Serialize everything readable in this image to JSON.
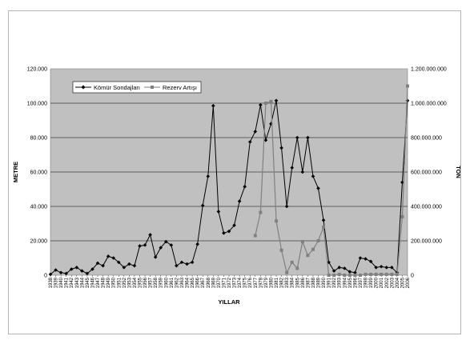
{
  "chart_data": {
    "type": "line",
    "xlabel": "YILLAR",
    "ylabel": "METRE",
    "y2label": "TON",
    "ylim": [
      0,
      120000
    ],
    "y2lim": [
      0,
      1200000000
    ],
    "yticks": [
      "0",
      "20.000",
      "40.000",
      "60.000",
      "80.000",
      "100.000",
      "120.000"
    ],
    "y2ticks": [
      "0",
      "200.000.000",
      "400.000.000",
      "600.000.000",
      "800.000.000",
      "1.000.000.000",
      "1.200.000.000"
    ],
    "grid": true,
    "legend_position": "top-left",
    "plot_background": "#c0c0c0",
    "categories": [
      "1938",
      "1939",
      "1940",
      "1941",
      "1942",
      "1943",
      "1944",
      "1945",
      "1946",
      "1947",
      "1948",
      "1949",
      "1950",
      "1951",
      "1952",
      "1953",
      "1954",
      "1955",
      "1956",
      "1957",
      "1958",
      "1959",
      "1960",
      "1961",
      "1962",
      "1963",
      "1964",
      "1965",
      "1966",
      "1967",
      "1968",
      "1969",
      "1970",
      "1971",
      "1972",
      "1973",
      "1974",
      "1975",
      "1976",
      "1977",
      "1978",
      "1979",
      "1980",
      "1981",
      "1982",
      "1983",
      "1984",
      "1985",
      "1986",
      "1987",
      "1988",
      "1989",
      "1990",
      "1991",
      "1992",
      "1993",
      "1994",
      "1995",
      "1996",
      "1997",
      "1998",
      "1999",
      "2000",
      "2001",
      "2002",
      "2003",
      "2004",
      "2005",
      "2006"
    ],
    "series": [
      {
        "name": "Kömür Sondajları",
        "axis": "left",
        "color": "#000000",
        "marker": "diamond",
        "values": [
          500,
          3000,
          1500,
          1000,
          3500,
          4500,
          2500,
          1000,
          3500,
          7000,
          5500,
          11000,
          10000,
          7500,
          4500,
          6500,
          5500,
          17000,
          17500,
          23500,
          10500,
          16000,
          19500,
          17500,
          5500,
          7500,
          6500,
          7500,
          18000,
          40500,
          57500,
          98500,
          37000,
          24500,
          25500,
          29000,
          43000,
          51500,
          77500,
          83500,
          99000,
          78500,
          88000,
          101500,
          74000,
          40000,
          62500,
          80000,
          60000,
          80000,
          57500,
          50500,
          32000,
          7500,
          2500,
          4500,
          4000,
          2000,
          1500,
          10000,
          9500,
          8000,
          4500,
          5000,
          4500,
          4500,
          1500,
          54000,
          101500
        ]
      },
      {
        "name": "Rezerv Artışı",
        "axis": "right",
        "color": "#808080",
        "marker": "square",
        "x": [
          "1977",
          "1978",
          "1979",
          "1980",
          "1981",
          "1982",
          "1983",
          "1984",
          "1985",
          "1986",
          "1987",
          "1988",
          "1989",
          "1990",
          "1991",
          "1992",
          "1993",
          "1994",
          "1995",
          "1996",
          "1997",
          "1998",
          "1999",
          "2000",
          "2001",
          "2002",
          "2003",
          "2004",
          "2005",
          "2006"
        ],
        "values": [
          230000000,
          365000000,
          1000000000,
          1010000000,
          315000000,
          145000000,
          15000000,
          75000000,
          40000000,
          195000000,
          115000000,
          150000000,
          200000000,
          280000000,
          0,
          0,
          5000000,
          0,
          0,
          0,
          0,
          5000000,
          5000000,
          5000000,
          5000000,
          5000000,
          5000000,
          5000000,
          340000000,
          1100000000
        ]
      }
    ]
  }
}
